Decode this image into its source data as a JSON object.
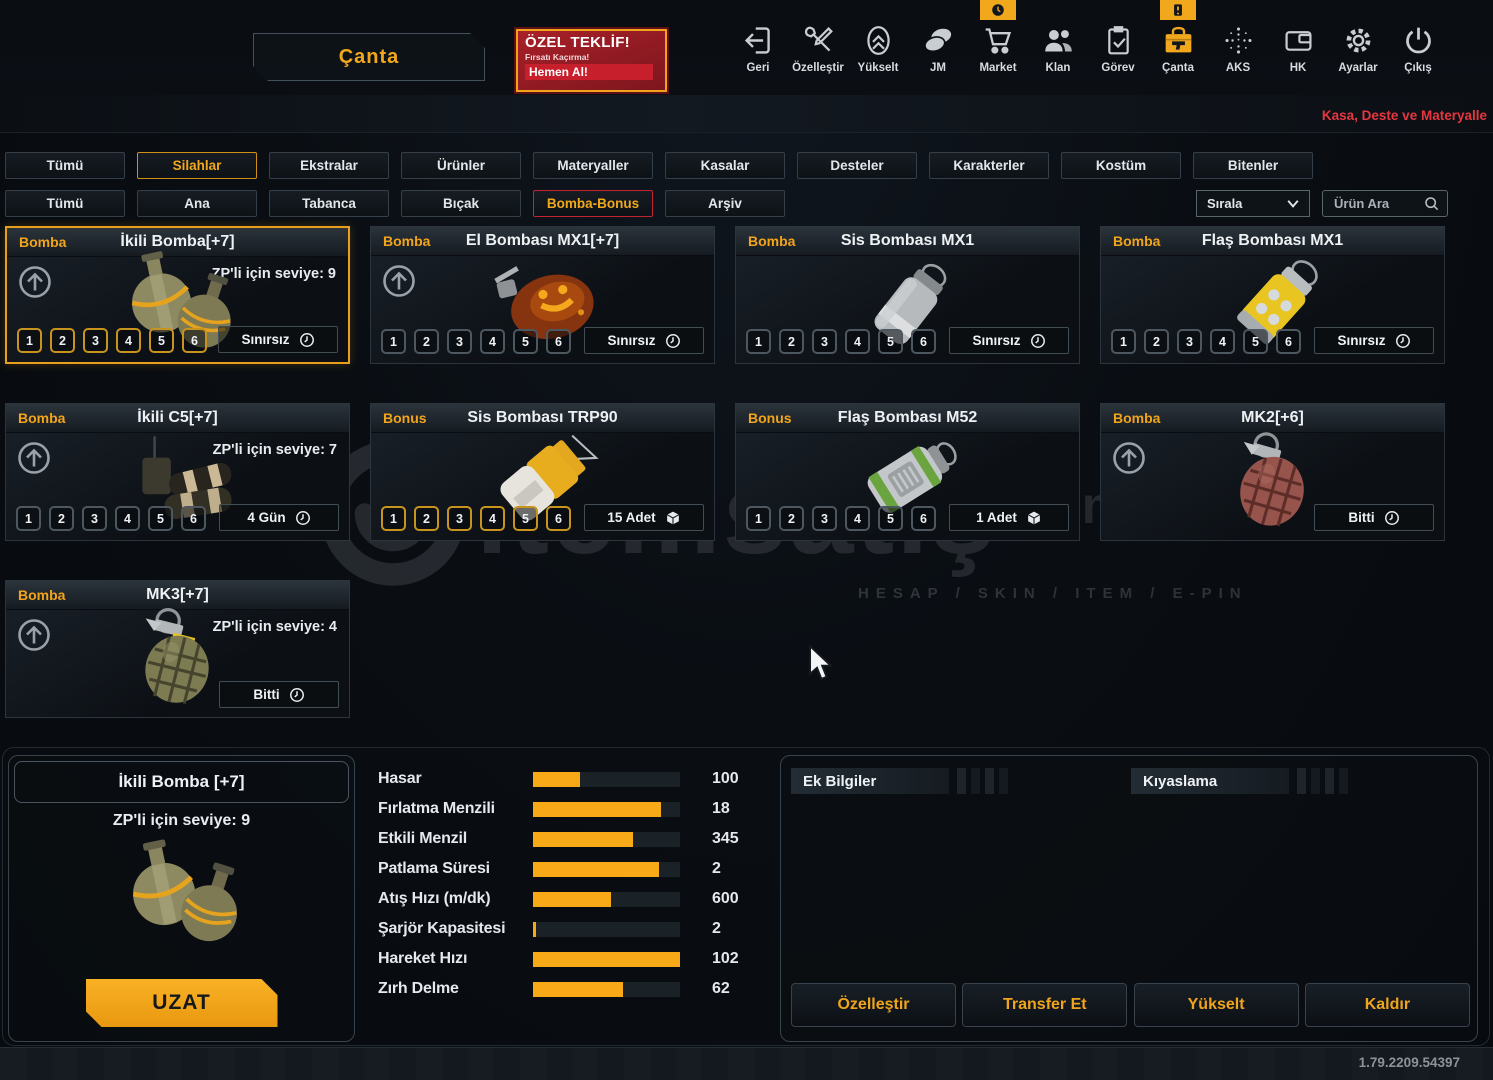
{
  "header": {
    "title": "Çanta",
    "offer": {
      "line1": "ÖZEL TEKLİF!",
      "line2": "Fırsatı Kaçırma!",
      "line3": "Hemen Al!"
    },
    "marquee": "Kasa, Deste ve Materyalle",
    "nav": [
      {
        "id": "geri",
        "label": "Geri",
        "icon": "back-icon"
      },
      {
        "id": "ozellestir",
        "label": "Özelleştir",
        "icon": "tools-icon"
      },
      {
        "id": "yukselt",
        "label": "Yükselt",
        "icon": "upgrade-icon"
      },
      {
        "id": "jm",
        "label": "JM",
        "icon": "coins-icon"
      },
      {
        "id": "market",
        "label": "Market",
        "icon": "cart-icon",
        "badge": "clock"
      },
      {
        "id": "klan",
        "label": "Klan",
        "icon": "clan-icon"
      },
      {
        "id": "gorev",
        "label": "Görev",
        "icon": "mission-icon"
      },
      {
        "id": "canta",
        "label": "Çanta",
        "icon": "toolbox-gun-icon",
        "badge": "alert",
        "active": true
      },
      {
        "id": "aks",
        "label": "AKS",
        "icon": "dots-icon"
      },
      {
        "id": "hk",
        "label": "HK",
        "icon": "wallet-icon"
      },
      {
        "id": "ayarlar",
        "label": "Ayarlar",
        "icon": "gear-icon"
      },
      {
        "id": "cikis",
        "label": "Çıkış",
        "icon": "power-icon"
      }
    ]
  },
  "filters": {
    "row1": [
      {
        "label": "Tümü"
      },
      {
        "label": "Silahlar",
        "active": true
      },
      {
        "label": "Ekstralar"
      },
      {
        "label": "Ürünler"
      },
      {
        "label": "Materyaller"
      },
      {
        "label": "Kasalar"
      },
      {
        "label": "Desteler"
      },
      {
        "label": "Karakterler"
      },
      {
        "label": "Kostüm"
      },
      {
        "label": "Bitenler"
      }
    ],
    "row2": [
      {
        "label": "Tümü"
      },
      {
        "label": "Ana"
      },
      {
        "label": "Tabanca"
      },
      {
        "label": "Bıçak"
      },
      {
        "label": "Bomba-Bonus",
        "active": true,
        "accent": "red"
      },
      {
        "label": "Arşiv"
      }
    ],
    "sort_label": "Sırala",
    "search_placeholder": "Ürün Ara"
  },
  "slot_labels": [
    "1",
    "2",
    "3",
    "4",
    "5",
    "6"
  ],
  "cards": [
    {
      "type": "Bomba",
      "title": "İkili Bomba[+7]",
      "zp": "ZP'li için seviye: 9",
      "upgrade": true,
      "slots": "yellow",
      "duration": "Sınırsız",
      "duration_icon": "clock-icon",
      "image": "double-grenade",
      "selected": true
    },
    {
      "type": "Bomba",
      "title": "El Bombası MX1[+7]",
      "upgrade": true,
      "slots": "gray",
      "duration": "Sınırsız",
      "duration_icon": "clock-icon",
      "image": "pumpkin-grenade"
    },
    {
      "type": "Bomba",
      "title": "Sis Bombası MX1",
      "slots": "gray",
      "duration": "Sınırsız",
      "duration_icon": "clock-icon",
      "image": "smoke-grenade-silver"
    },
    {
      "type": "Bomba",
      "title": "Flaş Bombası MX1",
      "slots": "gray",
      "duration": "Sınırsız",
      "duration_icon": "clock-icon",
      "image": "flash-grenade-yellow"
    },
    {
      "type": "Bomba",
      "title": "İkili C5[+7]",
      "zp": "ZP'li için seviye: 7",
      "upgrade": true,
      "slots": "gray",
      "duration": "4 Gün",
      "duration_icon": "clock-icon",
      "image": "c5-charge"
    },
    {
      "type": "Bonus",
      "title": "Sis Bombası TRP90",
      "slots": "yellow",
      "duration": "15 Adet",
      "duration_icon": "cube-icon",
      "image": "smoke-grenade-trp90"
    },
    {
      "type": "Bonus",
      "title": "Flaş Bombası M52",
      "slots": "gray",
      "duration": "1 Adet",
      "duration_icon": "cube-icon",
      "image": "flash-grenade-green"
    },
    {
      "type": "Bomba",
      "title": "MK2[+6]",
      "upgrade": true,
      "duration": "Bitti",
      "duration_icon": "clock-icon",
      "image": "mk2-grenade"
    },
    {
      "type": "Bomba",
      "title": "MK3[+7]",
      "zp": "ZP'li için seviye: 4",
      "upgrade": true,
      "duration": "Bitti",
      "duration_icon": "clock-icon",
      "image": "mk3-grenade"
    }
  ],
  "watermark": {
    "text": "itemsatış",
    "suffix": "com",
    "subtext": "HESAP / SKIN / ITEM / E-PIN"
  },
  "detail": {
    "title": "İkili Bomba [+7]",
    "zp": "ZP'li için seviye: 9",
    "image": "double-grenade",
    "action": "UZAT"
  },
  "stats": [
    {
      "label": "Hasar",
      "value": "100",
      "pct": 32
    },
    {
      "label": "Fırlatma Menzili",
      "value": "18",
      "pct": 87
    },
    {
      "label": "Etkili Menzil",
      "value": "345",
      "pct": 68
    },
    {
      "label": "Patlama Süresi",
      "value": "2",
      "pct": 86
    },
    {
      "label": "Atış Hızı (m/dk)",
      "value": "600",
      "pct": 53
    },
    {
      "label": "Şarjör Kapasitesi",
      "value": "2",
      "pct": 2
    },
    {
      "label": "Hareket Hızı",
      "value": "102",
      "pct": 100
    },
    {
      "label": "Zırh Delme",
      "value": "62",
      "pct": 61
    }
  ],
  "info_tabs": {
    "left": "Ek Bilgiler",
    "right": "Kıyaslama"
  },
  "actions": [
    {
      "label": "Özelleştir"
    },
    {
      "label": "Transfer Et"
    },
    {
      "label": "Yükselt"
    },
    {
      "label": "Kaldır"
    }
  ],
  "footer": {
    "version": "1.79.2209.54397"
  },
  "colors": {
    "accent": "#f2a81c",
    "alert_red": "#c7202c",
    "marquee_red": "#e63740"
  }
}
